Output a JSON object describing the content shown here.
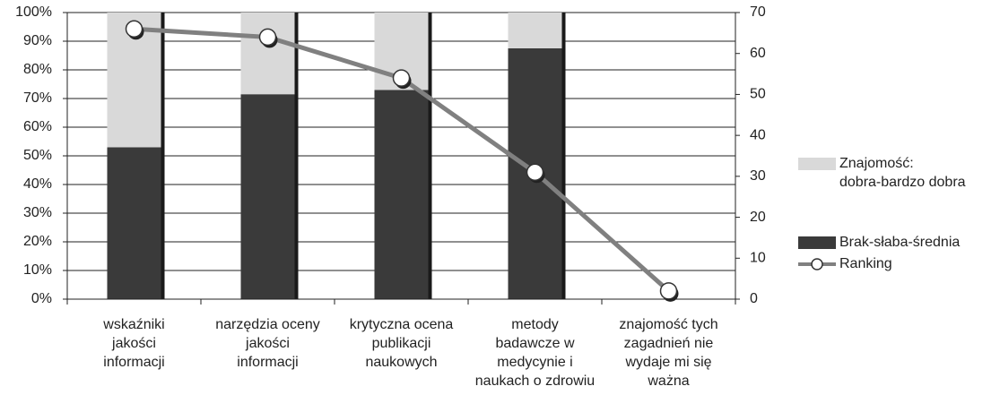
{
  "chart_data": {
    "type": "bar",
    "categories": [
      "wskaźniki\njakości\ninformacji",
      "narzędzia oceny\njakości\ninformacji",
      "krytyczna ocena\npublikacji\nnaukowych",
      "metody\nbadawcze w\nmedycynie i\nnaukach o zdrowiu",
      "znajomość tych\nzagadnień nie\nwydaje mi się\nważna"
    ],
    "series": [
      {
        "name": "Brak-słaba-średnia",
        "type": "bar",
        "color": "#3a3a3a",
        "values": [
          53,
          71.5,
          73,
          87.5,
          null
        ]
      },
      {
        "name": "Znajomość:\ndobra-bardzo dobra",
        "type": "bar",
        "color": "#d9d9d9",
        "values": [
          47,
          28.5,
          27,
          12.5,
          null
        ]
      },
      {
        "name": "Ranking",
        "type": "line",
        "axis": "y2",
        "color": "#808080",
        "values": [
          66,
          64,
          54,
          31,
          2
        ]
      }
    ],
    "ylim": [
      0,
      100
    ],
    "yticks": [
      {
        "value": 0,
        "label": "0%"
      },
      {
        "value": 10,
        "label": "10%"
      },
      {
        "value": 20,
        "label": "20%"
      },
      {
        "value": 30,
        "label": "30%"
      },
      {
        "value": 40,
        "label": "40%"
      },
      {
        "value": 50,
        "label": "50%"
      },
      {
        "value": 60,
        "label": "60%"
      },
      {
        "value": 70,
        "label": "70%"
      },
      {
        "value": 80,
        "label": "80%"
      },
      {
        "value": 90,
        "label": "90%"
      },
      {
        "value": 100,
        "label": "100%"
      }
    ],
    "y2lim": [
      0,
      70
    ],
    "y2ticks": [
      0,
      10,
      20,
      30,
      40,
      50,
      60,
      70
    ],
    "grid": true,
    "legend": "right"
  }
}
